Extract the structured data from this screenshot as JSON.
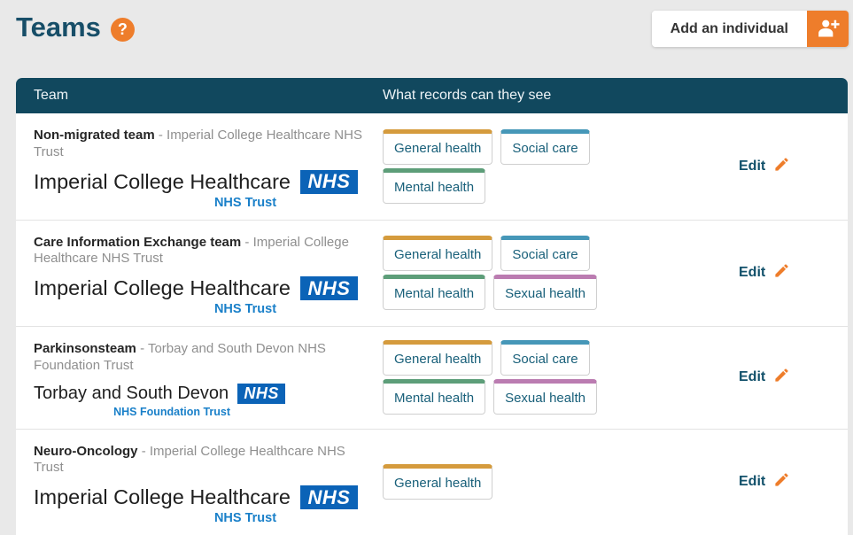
{
  "page": {
    "title": "Teams",
    "help_label": "?",
    "add_button_label": "Add an individual"
  },
  "table": {
    "col_team": "Team",
    "col_records": "What records can they see",
    "edit_label": "Edit",
    "rows": [
      {
        "team_name": "Non-migrated team",
        "trust": "- Imperial College Healthcare NHS Trust",
        "logo": {
          "org": "Imperial College Healthcare",
          "nhs": "NHS",
          "sub": "NHS Trust",
          "variant": "large"
        },
        "records": [
          {
            "label": "General health",
            "color": "#d59b3d"
          },
          {
            "label": "Social care",
            "color": "#4697b8"
          },
          {
            "label": "Mental health",
            "color": "#5d9e79"
          }
        ]
      },
      {
        "team_name": "Care Information Exchange team",
        "trust": "- Imperial College Healthcare NHS Trust",
        "logo": {
          "org": "Imperial College Healthcare",
          "nhs": "NHS",
          "sub": "NHS Trust",
          "variant": "large"
        },
        "records": [
          {
            "label": "General health",
            "color": "#d59b3d"
          },
          {
            "label": "Social care",
            "color": "#4697b8"
          },
          {
            "label": "Mental health",
            "color": "#5d9e79"
          },
          {
            "label": "Sexual health",
            "color": "#bb7cb1"
          }
        ]
      },
      {
        "team_name": "Parkinsonsteam",
        "trust": "- Torbay and South Devon NHS Foundation Trust",
        "logo": {
          "org": "Torbay and South Devon",
          "nhs": "NHS",
          "sub": "NHS Foundation Trust",
          "variant": "small"
        },
        "records": [
          {
            "label": "General health",
            "color": "#d59b3d"
          },
          {
            "label": "Social care",
            "color": "#4697b8"
          },
          {
            "label": "Mental health",
            "color": "#5d9e79"
          },
          {
            "label": "Sexual health",
            "color": "#bb7cb1"
          }
        ]
      },
      {
        "team_name": "Neuro-Oncology",
        "trust": "- Imperial College Healthcare NHS Trust",
        "logo": {
          "org": "Imperial College Healthcare",
          "nhs": "NHS",
          "sub": "NHS Trust",
          "variant": "large"
        },
        "records": [
          {
            "label": "General health",
            "color": "#d59b3d"
          }
        ]
      }
    ]
  },
  "colors": {
    "accent_orange": "#ee7d2b",
    "header_teal": "#11485e",
    "nhs_blue": "#0b63b7",
    "page_background": "#e9e9e9"
  }
}
